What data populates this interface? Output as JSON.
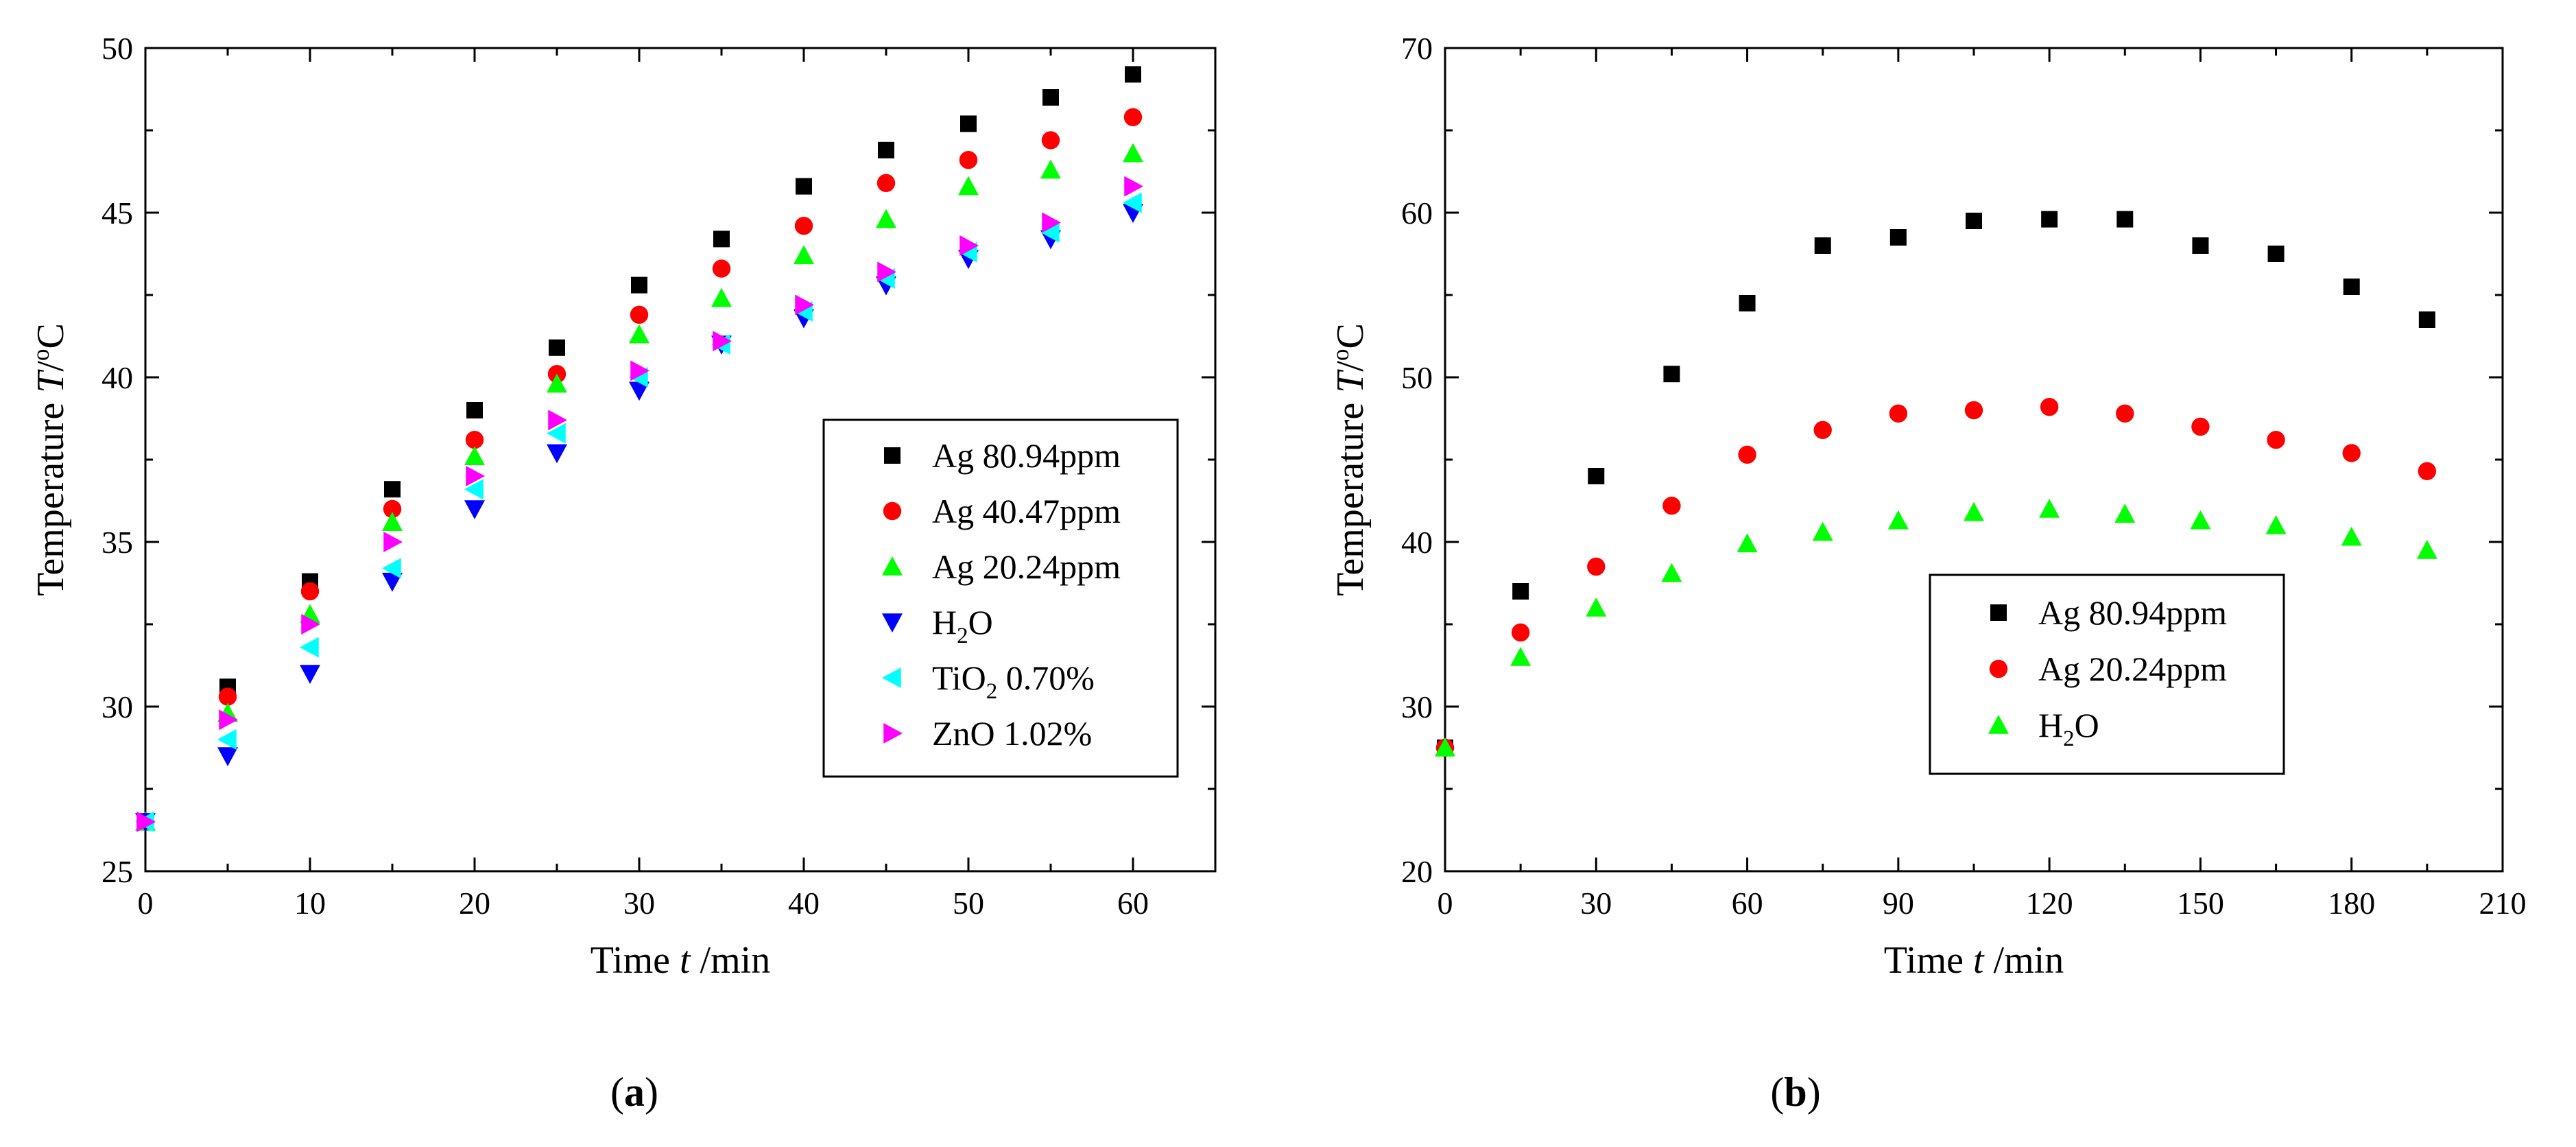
{
  "chart_data": [
    {
      "id": "a",
      "panel_label": "(a)",
      "type": "scatter",
      "xlabel": "Time t /min",
      "ylabel": "Temperature T/°C",
      "xlim": [
        0,
        65
      ],
      "ylim": [
        25,
        50
      ],
      "xticks": [
        0,
        10,
        20,
        30,
        40,
        50,
        60
      ],
      "yticks": [
        25,
        30,
        35,
        40,
        45,
        50
      ],
      "legend_position": "center-right",
      "series": [
        {
          "name": "Ag 80.94ppm",
          "marker": "square",
          "color": "#000000",
          "x": [
            0,
            5,
            10,
            15,
            20,
            25,
            30,
            35,
            40,
            45,
            50,
            55,
            60
          ],
          "y": [
            26.5,
            30.6,
            33.8,
            36.6,
            39.0,
            40.9,
            42.8,
            44.2,
            45.8,
            46.9,
            47.7,
            48.5,
            49.2
          ]
        },
        {
          "name": "Ag 40.47ppm",
          "marker": "circle",
          "color": "#ff0000",
          "x": [
            0,
            5,
            10,
            15,
            20,
            25,
            30,
            35,
            40,
            45,
            50,
            55,
            60
          ],
          "y": [
            26.5,
            30.3,
            33.5,
            36.0,
            38.1,
            40.1,
            41.9,
            43.3,
            44.6,
            45.9,
            46.6,
            47.2,
            47.9
          ]
        },
        {
          "name": "Ag 20.24ppm",
          "marker": "triangle-up",
          "color": "#00ff00",
          "x": [
            0,
            5,
            10,
            15,
            20,
            25,
            30,
            35,
            40,
            45,
            50,
            55,
            60
          ],
          "y": [
            26.5,
            29.8,
            32.8,
            35.6,
            37.6,
            39.8,
            41.3,
            42.4,
            43.7,
            44.8,
            45.8,
            46.3,
            46.8
          ]
        },
        {
          "name": "H2O",
          "marker": "triangle-down",
          "color": "#0000ff",
          "x": [
            0,
            5,
            10,
            15,
            20,
            25,
            30,
            35,
            40,
            45,
            50,
            55,
            60
          ],
          "y": [
            26.5,
            28.5,
            31.0,
            33.8,
            36.0,
            37.7,
            39.6,
            41.0,
            41.8,
            42.8,
            43.6,
            44.2,
            45.0
          ]
        },
        {
          "name": "TiO2 0.70%",
          "marker": "triangle-left",
          "color": "#00ffff",
          "x": [
            0,
            5,
            10,
            15,
            20,
            25,
            30,
            35,
            40,
            45,
            50,
            55,
            60
          ],
          "y": [
            26.5,
            29.0,
            31.8,
            34.2,
            36.6,
            38.3,
            40.0,
            41.0,
            42.0,
            43.0,
            43.8,
            44.4,
            45.3
          ]
        },
        {
          "name": "ZnO 1.02%",
          "marker": "triangle-right",
          "color": "#ff00ff",
          "x": [
            0,
            5,
            10,
            15,
            20,
            25,
            30,
            35,
            40,
            45,
            50,
            55,
            60
          ],
          "y": [
            26.5,
            29.6,
            32.5,
            35.0,
            37.0,
            38.7,
            40.2,
            41.1,
            42.2,
            43.2,
            44.0,
            44.7,
            45.8
          ]
        }
      ]
    },
    {
      "id": "b",
      "panel_label": "(b)",
      "type": "scatter",
      "xlabel": "Time t /min",
      "ylabel": "Temperature T/°C",
      "xlim": [
        0,
        210
      ],
      "ylim": [
        20,
        70
      ],
      "xticks": [
        0,
        30,
        60,
        90,
        120,
        150,
        180,
        210
      ],
      "yticks": [
        20,
        30,
        40,
        50,
        60,
        70
      ],
      "legend_position": "center",
      "series": [
        {
          "name": "Ag 80.94ppm",
          "marker": "square",
          "color": "#000000",
          "x": [
            0,
            15,
            30,
            45,
            60,
            75,
            90,
            105,
            120,
            135,
            150,
            165,
            180,
            195
          ],
          "y": [
            27.5,
            37.0,
            44.0,
            50.2,
            54.5,
            58.0,
            58.5,
            59.5,
            59.6,
            59.6,
            58.0,
            57.5,
            55.5,
            53.5
          ]
        },
        {
          "name": "Ag 20.24ppm",
          "marker": "circle",
          "color": "#ff0000",
          "x": [
            0,
            15,
            30,
            45,
            60,
            75,
            90,
            105,
            120,
            135,
            150,
            165,
            180,
            195
          ],
          "y": [
            27.5,
            34.5,
            38.5,
            42.2,
            45.3,
            46.8,
            47.8,
            48.0,
            48.2,
            47.8,
            47.0,
            46.2,
            45.4,
            44.3
          ]
        },
        {
          "name": "H2O",
          "marker": "triangle-up",
          "color": "#00ff00",
          "x": [
            0,
            15,
            30,
            45,
            60,
            75,
            90,
            105,
            120,
            135,
            150,
            165,
            180,
            195
          ],
          "y": [
            27.5,
            33.0,
            36.0,
            38.1,
            39.9,
            40.6,
            41.3,
            41.8,
            42.0,
            41.7,
            41.3,
            41.0,
            40.3,
            39.5
          ]
        }
      ]
    }
  ]
}
